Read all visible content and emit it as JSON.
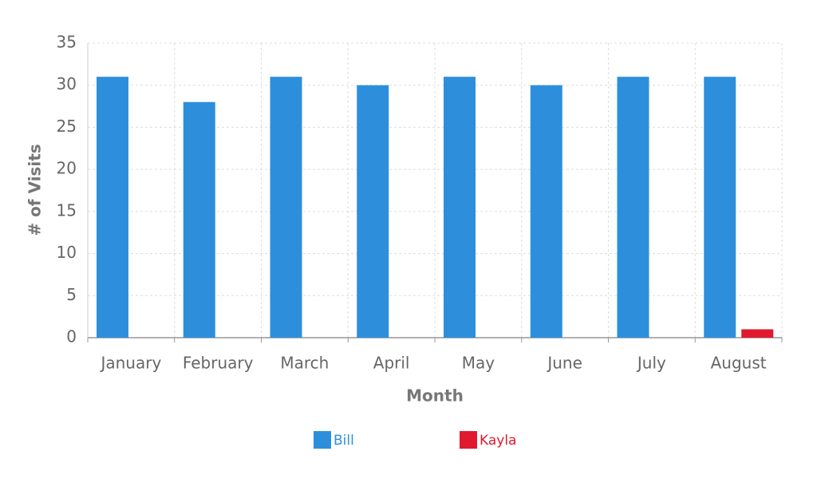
{
  "chart_data": {
    "type": "bar",
    "x_label": "Month",
    "y_label": "# of Visits",
    "categories": [
      "January",
      "February",
      "March",
      "April",
      "May",
      "June",
      "July",
      "August"
    ],
    "series": [
      {
        "name": "Bill",
        "color": "#2d8fdc",
        "values": [
          31,
          28,
          31,
          30,
          31,
          30,
          31,
          31
        ]
      },
      {
        "name": "Kayla",
        "color": "#e0192f",
        "values": [
          0,
          0,
          0,
          0,
          0,
          0,
          0,
          1
        ]
      }
    ],
    "ylim": [
      0,
      35
    ],
    "yticks": [
      0,
      5,
      10,
      15,
      20,
      25,
      30,
      35
    ],
    "grid": true,
    "legend": "bottom"
  }
}
